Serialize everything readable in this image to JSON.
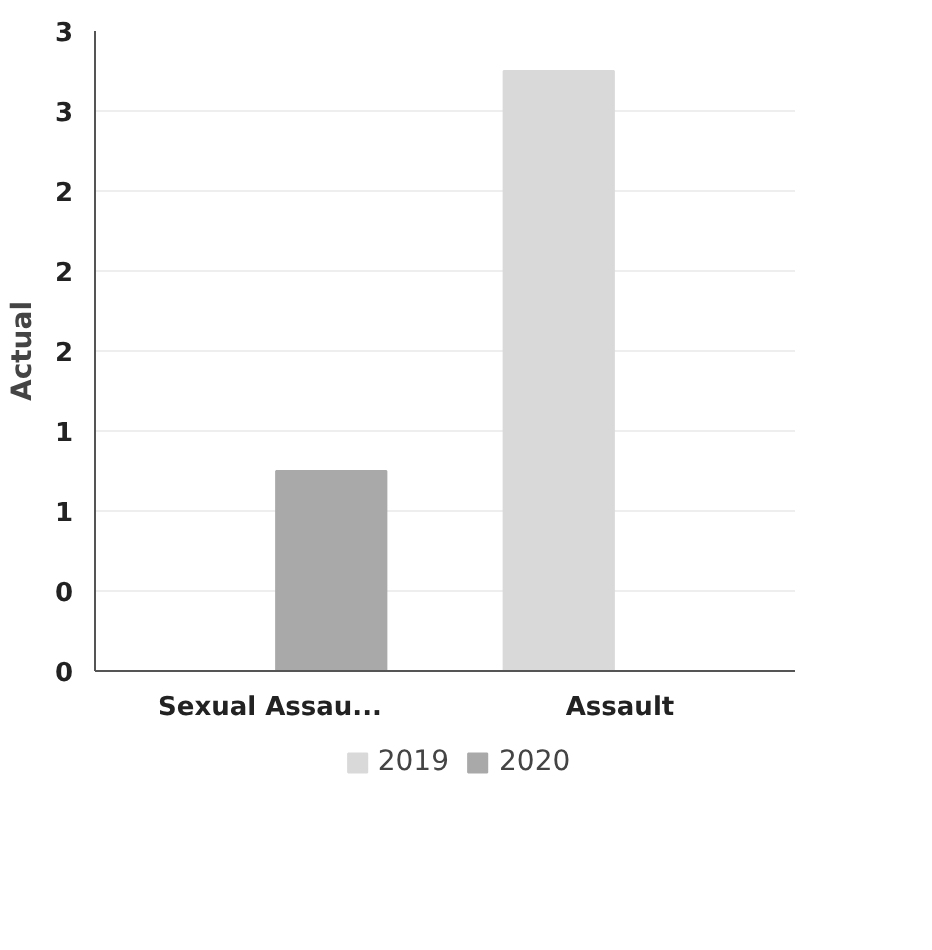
{
  "chart_data": {
    "type": "bar",
    "ylabel": "Actual",
    "categories": [
      "Sexual Assau...",
      "Assault"
    ],
    "series": [
      {
        "name": "2019",
        "color": "#d9d9d9",
        "values": [
          0,
          3
        ]
      },
      {
        "name": "2020",
        "color": "#a9a9a9",
        "values": [
          1,
          0
        ]
      }
    ],
    "ylim": [
      0,
      3.2
    ],
    "yticks": [
      0,
      {
        "value": 0.4,
        "label": "0"
      },
      {
        "value": 0.8,
        "label": "1"
      },
      {
        "value": 1.2,
        "label": "1"
      },
      {
        "value": 1.6,
        "label": "2"
      },
      {
        "value": 2.0,
        "label": "2"
      },
      {
        "value": 2.4,
        "label": "2"
      },
      {
        "value": 2.8,
        "label": "3"
      },
      {
        "value": 3.2,
        "label": "3"
      }
    ],
    "grid": "y",
    "legend": "bottom"
  }
}
